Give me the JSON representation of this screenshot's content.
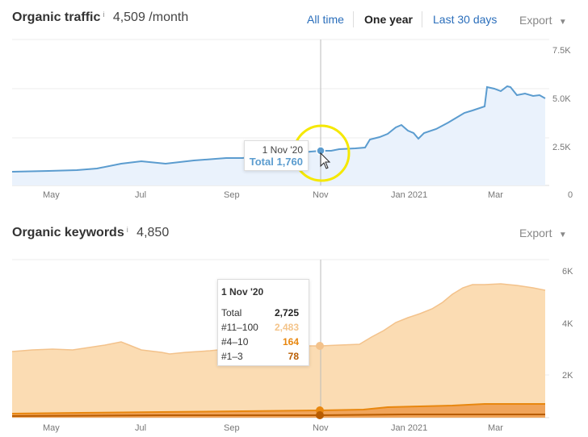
{
  "traffic": {
    "title": "Organic traffic",
    "info": "i",
    "value": "4,509 /month",
    "ranges": [
      "All time",
      "One year",
      "Last 30 days"
    ],
    "selected_range": "One year",
    "export_label": "Export",
    "y_ticks": [
      "7.5K",
      "5.0K",
      "2.5K",
      "0"
    ],
    "x_ticks": [
      "May",
      "Jul",
      "Sep",
      "Nov",
      "Jan 2021",
      "Mar"
    ],
    "tooltip": {
      "date": "1 Nov '20",
      "total": "Total 1,760"
    },
    "colors": {
      "line": "#5b9ccf",
      "fill": "#eaf2fc",
      "highlight": "#f5e800"
    }
  },
  "keywords": {
    "title": "Organic keywords",
    "info": "i",
    "value": "4,850",
    "export_label": "Export",
    "y_ticks": [
      "6K",
      "4K",
      "2K"
    ],
    "x_ticks": [
      "May",
      "Jul",
      "Sep",
      "Nov",
      "Jan 2021",
      "Mar"
    ],
    "tooltip": {
      "date": "1 Nov '20",
      "rows": [
        {
          "label": "Total",
          "value": "2,725",
          "color": "#222"
        },
        {
          "label": "#11–100",
          "value": "2,483",
          "color": "#f4c48a"
        },
        {
          "label": "#4–10",
          "value": "164",
          "color": "#e8870f"
        },
        {
          "label": "#1–3",
          "value": "78",
          "color": "#b85c00"
        }
      ]
    },
    "colors": {
      "area": "#fbdcb3",
      "line": "#f3c28b",
      "mid": "#e8870f",
      "low": "#b85c00"
    }
  }
}
